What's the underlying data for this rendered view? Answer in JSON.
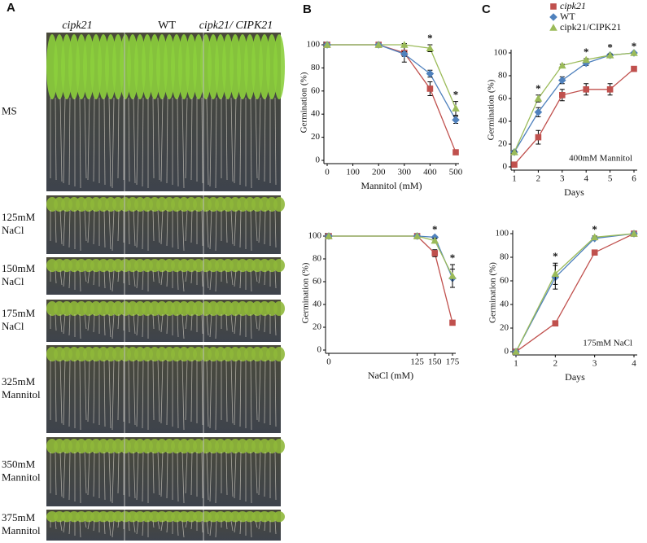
{
  "panel_letters": [
    "A",
    "B",
    "C"
  ],
  "panel_a": {
    "columns": [
      "cipk21",
      "WT",
      "cipk21/ CIPK21"
    ],
    "rows": [
      [
        "MS"
      ],
      [
        "125mM",
        "NaCl"
      ],
      [
        "150mM",
        "NaCl"
      ],
      [
        "175mM",
        "NaCl"
      ],
      [
        "325mM",
        "Mannitol"
      ],
      [
        "350mM",
        "Mannitol"
      ],
      [
        "375mM",
        "Mannitol"
      ]
    ]
  },
  "legend": [
    {
      "name": "cipk21",
      "color": "#c0504d"
    },
    {
      "name": "WT",
      "color": "#4f81bd"
    },
    {
      "name": "cipk21/CIPK21",
      "color": "#9bbb59"
    }
  ],
  "chart_data": [
    {
      "type": "line",
      "xlabel": "Mannitol (mM)",
      "ylabel": "Germination (%)",
      "x": [
        0,
        200,
        300,
        400,
        500
      ],
      "xlim": [
        0,
        500
      ],
      "xticks": [
        0,
        100,
        200,
        300,
        400,
        500
      ],
      "ylim": [
        0,
        100
      ],
      "yticks": [
        0,
        20,
        40,
        60,
        80,
        100
      ],
      "series": [
        {
          "values": [
            100,
            100,
            93,
            62,
            7
          ],
          "errors": [
            0,
            0,
            8,
            6,
            1
          ]
        },
        {
          "values": [
            100,
            100,
            92,
            75,
            35
          ],
          "errors": [
            0,
            0,
            2,
            3,
            3
          ]
        },
        {
          "values": [
            100,
            100,
            100,
            97,
            45
          ],
          "errors": [
            0,
            0,
            1,
            3,
            6
          ]
        }
      ],
      "annotations": [
        {
          "x": 400,
          "text": "*"
        },
        {
          "x": 500,
          "text": "*"
        }
      ]
    },
    {
      "type": "line",
      "xlabel": "NaCl (mM)",
      "ylabel": "Germination (%)",
      "x": [
        0,
        125,
        150,
        175
      ],
      "xlim": [
        0,
        175
      ],
      "xticks": [
        0,
        125,
        150,
        175
      ],
      "ylim": [
        0,
        100
      ],
      "yticks": [
        0,
        20,
        40,
        60,
        80,
        100
      ],
      "series": [
        {
          "values": [
            100,
            100,
            85,
            24
          ],
          "errors": [
            0,
            2,
            3,
            1
          ]
        },
        {
          "values": [
            100,
            100,
            99,
            63
          ],
          "errors": [
            0,
            0,
            1,
            8
          ]
        },
        {
          "values": [
            100,
            100,
            96,
            65
          ],
          "errors": [
            0,
            0,
            2,
            10
          ]
        }
      ],
      "annotations": [
        {
          "x": 150,
          "text": "*"
        },
        {
          "x": 175,
          "text": "*"
        }
      ]
    },
    {
      "type": "line",
      "xlabel": "Days",
      "ylabel": "Germination (%)",
      "note": "400mM Mannitol",
      "x": [
        1,
        2,
        3,
        4,
        5,
        6
      ],
      "xlim": [
        1,
        6
      ],
      "xticks": [
        1,
        2,
        3,
        4,
        5,
        6
      ],
      "ylim": [
        0,
        100
      ],
      "yticks": [
        0,
        20,
        40,
        60,
        80,
        100
      ],
      "series": [
        {
          "values": [
            2,
            26,
            63,
            68,
            68,
            86
          ],
          "errors": [
            2,
            6,
            5,
            5,
            5,
            1
          ]
        },
        {
          "values": [
            13,
            48,
            76,
            91,
            98,
            100
          ],
          "errors": [
            1,
            4,
            3,
            2,
            1,
            0
          ]
        },
        {
          "values": [
            13,
            60,
            89,
            94,
            98,
            100
          ],
          "errors": [
            1,
            3,
            1,
            1,
            1,
            0
          ]
        }
      ],
      "annotations": [
        {
          "x": 2,
          "text": "*"
        },
        {
          "x": 4,
          "text": "*"
        },
        {
          "x": 5,
          "text": "*"
        },
        {
          "x": 6,
          "text": "*"
        }
      ]
    },
    {
      "type": "line",
      "xlabel": "Days",
      "ylabel": "Germination (%)",
      "note": "175mM NaCl",
      "x": [
        1,
        2,
        3,
        4
      ],
      "xlim": [
        1,
        4
      ],
      "xticks": [
        1,
        2,
        3,
        4
      ],
      "ylim": [
        0,
        100
      ],
      "yticks": [
        0,
        20,
        40,
        60,
        80,
        100
      ],
      "series": [
        {
          "values": [
            0,
            24,
            84,
            100
          ],
          "errors": [
            0,
            1,
            1,
            0
          ]
        },
        {
          "values": [
            0,
            63,
            96,
            100
          ],
          "errors": [
            0,
            10,
            1,
            0
          ]
        },
        {
          "values": [
            0,
            66,
            97,
            100
          ],
          "errors": [
            0,
            9,
            1,
            0
          ]
        }
      ],
      "annotations": [
        {
          "x": 2,
          "text": "*"
        },
        {
          "x": 3,
          "text": "*"
        }
      ]
    }
  ]
}
